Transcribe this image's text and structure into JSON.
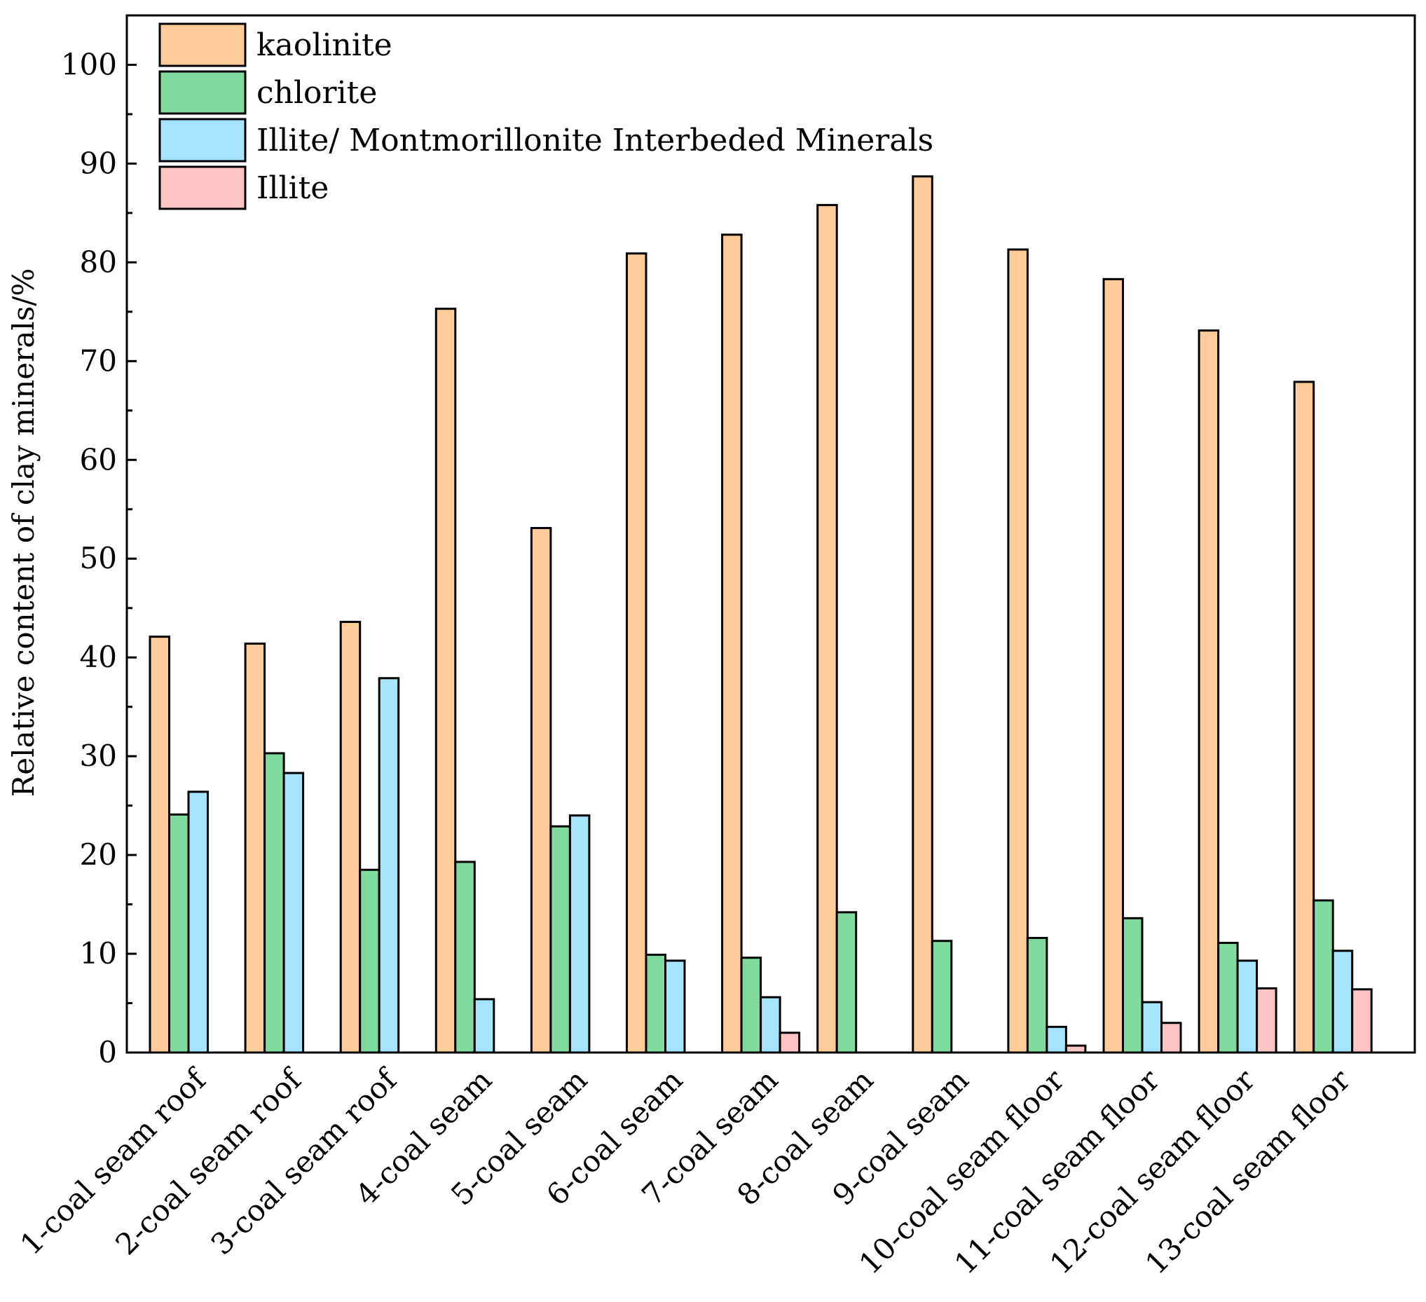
{
  "chart_data": {
    "type": "bar",
    "title": "",
    "xlabel": "",
    "ylabel": "Relative content of clay minerals/%",
    "ylim": [
      0,
      105
    ],
    "yticks": [
      0,
      10,
      20,
      30,
      40,
      50,
      60,
      70,
      80,
      90,
      100
    ],
    "legend_position": "top-left",
    "categories": [
      "1-coal seam roof",
      "2-coal seam roof",
      "3-coal seam roof",
      "4-coal seam",
      "5-coal seam",
      "6-coal seam",
      "7-coal seam",
      "8-coal seam",
      "9-coal seam",
      "10-coal seam floor",
      "11-coal seam floor",
      "12-coal seam floor",
      "13-coal seam floor"
    ],
    "series": [
      {
        "name": "kaolinite",
        "color": "#FFCC99",
        "values": [
          42.1,
          41.4,
          43.6,
          75.3,
          53.1,
          80.9,
          82.8,
          85.8,
          88.7,
          81.3,
          78.3,
          73.1,
          67.9
        ]
      },
      {
        "name": "chlorite",
        "color": "#80DB9E",
        "values": [
          24.1,
          30.3,
          18.5,
          19.3,
          22.9,
          9.9,
          9.6,
          14.2,
          11.3,
          11.6,
          13.6,
          11.1,
          15.4
        ]
      },
      {
        "name": "Illite/ Montmorillonite Interbeded Minerals",
        "color": "#A6E4FF",
        "values": [
          26.4,
          28.3,
          37.9,
          5.4,
          24.0,
          9.3,
          5.6,
          0,
          0,
          2.6,
          5.1,
          9.3,
          10.3
        ]
      },
      {
        "name": "Illite",
        "color": "#FFC4C4",
        "values": [
          0,
          0,
          0,
          0,
          0,
          0,
          2.0,
          0,
          0,
          0.7,
          3.0,
          6.5,
          6.4
        ]
      }
    ]
  }
}
